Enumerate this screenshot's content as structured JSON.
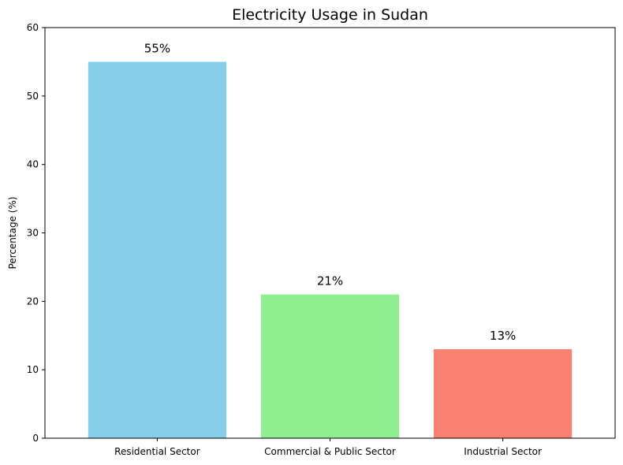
{
  "chart_data": {
    "type": "bar",
    "title": "Electricity Usage in Sudan",
    "xlabel": "",
    "ylabel": "Percentage (%)",
    "categories": [
      "Residential Sector",
      "Commercial & Public Sector",
      "Industrial Sector"
    ],
    "values": [
      55,
      21,
      13
    ],
    "value_labels": [
      "55%",
      "21%",
      "13%"
    ],
    "colors": [
      "#87ceeb",
      "#90ee90",
      "#fa8072"
    ],
    "ylim": [
      0,
      60
    ],
    "yticks": [
      0,
      10,
      20,
      30,
      40,
      50,
      60
    ],
    "ytick_labels": [
      "0",
      "10",
      "20",
      "30",
      "40",
      "50",
      "60"
    ],
    "grid": false,
    "legend": false
  }
}
